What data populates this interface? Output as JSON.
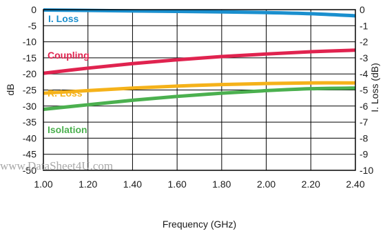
{
  "chart_data": {
    "type": "line",
    "xlabel": "Frequency (GHz)",
    "ylabel": "dB",
    "y2label": "I. Loss (dB)",
    "xlim": [
      1.0,
      2.4
    ],
    "ylim": [
      -50,
      0
    ],
    "y2lim": [
      -10,
      0
    ],
    "x_ticks": [
      "1.00",
      "1.20",
      "1.40",
      "1.60",
      "1.80",
      "2.00",
      "2.20",
      "2.40"
    ],
    "y_ticks": [
      "0",
      "-5",
      "-10",
      "-15",
      "-20",
      "-25",
      "-30",
      "-35",
      "-40",
      "-45",
      "-50"
    ],
    "y2_ticks": [
      "0",
      "-1",
      "-2",
      "-3",
      "-4",
      "-5",
      "-6",
      "-7",
      "-8",
      "-9",
      "-10"
    ],
    "grid": true,
    "x": [
      1.0,
      1.2,
      1.4,
      1.6,
      1.8,
      2.0,
      2.2,
      2.4
    ],
    "series": [
      {
        "name": "I. Loss",
        "axis": "right",
        "color": "#1a8fce",
        "values": [
          -0.02,
          -0.05,
          -0.08,
          -0.11,
          -0.14,
          -0.18,
          -0.25,
          -0.38
        ]
      },
      {
        "name": "Coupling",
        "axis": "left",
        "color": "#e0234f",
        "values": [
          -19.8,
          -18.2,
          -16.8,
          -15.6,
          -14.6,
          -13.8,
          -13.1,
          -12.6
        ]
      },
      {
        "name": "R. Loss",
        "axis": "left",
        "color": "#f5b21a",
        "values": [
          -26.0,
          -25.2,
          -24.4,
          -23.8,
          -23.3,
          -23.0,
          -22.8,
          -22.8
        ]
      },
      {
        "name": "Isolation",
        "axis": "left",
        "color": "#4bb04f",
        "values": [
          -31.0,
          -29.6,
          -28.2,
          -27.0,
          -26.0,
          -25.2,
          -24.6,
          -24.4
        ]
      }
    ],
    "watermark": "www.DataSheet4U.com"
  }
}
